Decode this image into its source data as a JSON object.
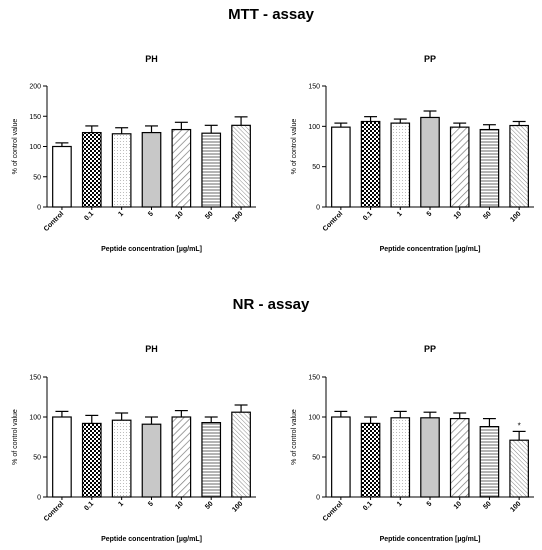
{
  "sections": [
    {
      "title": "MTT - assay"
    },
    {
      "title": "NR - assay"
    }
  ],
  "chart_data": [
    {
      "type": "bar",
      "section": "MTT - assay",
      "title": "PH",
      "xlabel": "Peptide concentration [µg/mL]",
      "ylabel": "% of control value",
      "categories": [
        "Control",
        "0.1",
        "1",
        "5",
        "10",
        "50",
        "100"
      ],
      "values": [
        100,
        123,
        121,
        123,
        128,
        122,
        135
      ],
      "errors": [
        6,
        11,
        10,
        11,
        12,
        13,
        14
      ],
      "patterns": [
        "solid-white",
        "checker",
        "dots",
        "solid-gray",
        "diag",
        "hlines",
        "diag-dense"
      ],
      "significance": [
        "",
        "",
        "",
        "",
        "",
        "",
        ""
      ],
      "ylim": [
        0,
        200
      ],
      "yticks": [
        0,
        50,
        100,
        150,
        200
      ],
      "grid": false
    },
    {
      "type": "bar",
      "section": "MTT - assay",
      "title": "PP",
      "xlabel": "Peptide concentration [µg/mL]",
      "ylabel": "% of control value",
      "categories": [
        "Control",
        "0.1",
        "1",
        "5",
        "10",
        "50",
        "100"
      ],
      "values": [
        99,
        106,
        104,
        111,
        99,
        96,
        101
      ],
      "errors": [
        5,
        6,
        5,
        8,
        5,
        6,
        5
      ],
      "patterns": [
        "solid-white",
        "checker",
        "dots",
        "solid-gray",
        "diag",
        "hlines",
        "diag-dense"
      ],
      "significance": [
        "",
        "",
        "",
        "",
        "",
        "",
        ""
      ],
      "ylim": [
        0,
        150
      ],
      "yticks": [
        0,
        50,
        100,
        150
      ],
      "grid": false
    },
    {
      "type": "bar",
      "section": "NR - assay",
      "title": "PH",
      "xlabel": "Peptide concentration [µg/mL]",
      "ylabel": "% of control value",
      "categories": [
        "Control",
        "0.1",
        "1",
        "5",
        "10",
        "50",
        "100"
      ],
      "values": [
        100,
        92,
        96,
        91,
        100,
        93,
        106
      ],
      "errors": [
        7,
        10,
        9,
        9,
        8,
        7,
        9
      ],
      "patterns": [
        "solid-white",
        "checker",
        "dots",
        "solid-gray",
        "diag",
        "hlines",
        "diag-dense"
      ],
      "significance": [
        "",
        "",
        "",
        "",
        "",
        "",
        ""
      ],
      "ylim": [
        0,
        150
      ],
      "yticks": [
        0,
        50,
        100,
        150
      ],
      "grid": false
    },
    {
      "type": "bar",
      "section": "NR - assay",
      "title": "PP",
      "xlabel": "Peptide concentration [µg/mL]",
      "ylabel": "% of control value",
      "categories": [
        "Control",
        "0.1",
        "1",
        "5",
        "10",
        "50",
        "100"
      ],
      "values": [
        100,
        92,
        99,
        99,
        98,
        88,
        71
      ],
      "errors": [
        7,
        8,
        8,
        7,
        7,
        10,
        11
      ],
      "patterns": [
        "solid-white",
        "checker",
        "dots",
        "solid-gray",
        "diag",
        "hlines",
        "diag-dense"
      ],
      "significance": [
        "",
        "",
        "",
        "",
        "",
        "",
        "*"
      ],
      "ylim": [
        0,
        150
      ],
      "yticks": [
        0,
        50,
        100,
        150
      ],
      "grid": false
    }
  ]
}
